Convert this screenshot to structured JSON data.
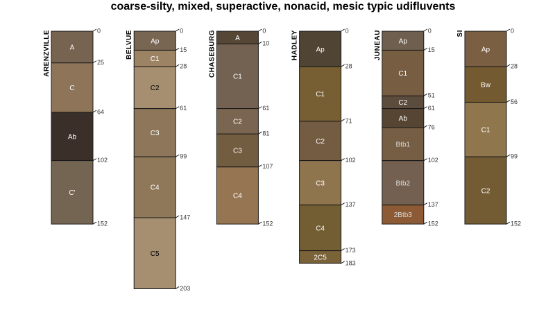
{
  "chart_data": {
    "type": "soil-profile-sketch",
    "title": "coarse-silty, mixed, superactive, nonacid, mesic typic udifluvents",
    "depth_units": "cm",
    "max_depth": 203,
    "profiles": [
      {
        "name": "ARENZVILLE",
        "horizons": [
          {
            "label": "A",
            "top": 0,
            "bottom": 25,
            "color": "#766350",
            "label_color": "#ffffff"
          },
          {
            "label": "C",
            "top": 25,
            "bottom": 64,
            "color": "#8e7559",
            "label_color": "#ffffff"
          },
          {
            "label": "Ab",
            "top": 64,
            "bottom": 102,
            "color": "#3b2f29",
            "label_color": "#ffffff"
          },
          {
            "label": "C'",
            "top": 102,
            "bottom": 152,
            "color": "#746553",
            "label_color": "#ffffff"
          }
        ],
        "depths": [
          "0",
          "25",
          "64",
          "102",
          "152"
        ]
      },
      {
        "name": "BELVUE",
        "horizons": [
          {
            "label": "Ap",
            "top": 0,
            "bottom": 15,
            "color": "#786552",
            "label_color": "#ffffff"
          },
          {
            "label": "C1",
            "top": 15,
            "bottom": 28,
            "color": "#9c8363",
            "label_color": "#ffffff"
          },
          {
            "label": "C2",
            "top": 28,
            "bottom": 61,
            "color": "#a68e71",
            "label_color": "#000000"
          },
          {
            "label": "C3",
            "top": 61,
            "bottom": 99,
            "color": "#8d7659",
            "label_color": "#ffffff"
          },
          {
            "label": "C4",
            "top": 99,
            "bottom": 147,
            "color": "#8f785a",
            "label_color": "#ffffff"
          },
          {
            "label": "C5",
            "top": 147,
            "bottom": 203,
            "color": "#a68e71",
            "label_color": "#000000"
          }
        ],
        "depths": [
          "0",
          "15",
          "28",
          "61",
          "99",
          "147",
          "203"
        ]
      },
      {
        "name": "CHASEBURG",
        "horizons": [
          {
            "label": "A",
            "top": 0,
            "bottom": 10,
            "color": "#564636",
            "label_color": "#ffffff"
          },
          {
            "label": "C1",
            "top": 10,
            "bottom": 61,
            "color": "#736252",
            "label_color": "#ffffff"
          },
          {
            "label": "C2",
            "top": 61,
            "bottom": 81,
            "color": "#7a6650",
            "label_color": "#ffffff"
          },
          {
            "label": "C3",
            "top": 81,
            "bottom": 107,
            "color": "#735d41",
            "label_color": "#ffffff"
          },
          {
            "label": "C4",
            "top": 107,
            "bottom": 152,
            "color": "#967552",
            "label_color": "#ffffff"
          }
        ],
        "depths": [
          "0",
          "10",
          "61",
          "81",
          "107",
          "152"
        ]
      },
      {
        "name": "HADLEY",
        "horizons": [
          {
            "label": "Ap",
            "top": 0,
            "bottom": 28,
            "color": "#504434",
            "label_color": "#ffffff"
          },
          {
            "label": "C1",
            "top": 28,
            "bottom": 71,
            "color": "#775e33",
            "label_color": "#ffffff"
          },
          {
            "label": "C2",
            "top": 71,
            "bottom": 102,
            "color": "#735c42",
            "label_color": "#ffffff"
          },
          {
            "label": "C3",
            "top": 102,
            "bottom": 137,
            "color": "#8f754e",
            "label_color": "#ffffff"
          },
          {
            "label": "C4",
            "top": 137,
            "bottom": 173,
            "color": "#735d33",
            "label_color": "#ffffff"
          },
          {
            "label": "2C5",
            "top": 173,
            "bottom": 183,
            "color": "#7a6339",
            "label_color": "#ffffff"
          }
        ],
        "depths": [
          "0",
          "28",
          "71",
          "102",
          "137",
          "173",
          "183"
        ]
      },
      {
        "name": "JUNEAU",
        "horizons": [
          {
            "label": "Ap",
            "top": 0,
            "bottom": 15,
            "color": "#6f5f4e",
            "label_color": "#ffffff"
          },
          {
            "label": "C1",
            "top": 15,
            "bottom": 51,
            "color": "#775e42",
            "label_color": "#ffffff"
          },
          {
            "label": "C2",
            "top": 51,
            "bottom": 61,
            "color": "#5c4c3d",
            "label_color": "#ffffff"
          },
          {
            "label": "Ab",
            "top": 61,
            "bottom": 76,
            "color": "#574534",
            "label_color": "#ffffff"
          },
          {
            "label": "Btb1",
            "top": 76,
            "bottom": 102,
            "color": "#765e44",
            "label_color": "#d9d9d9"
          },
          {
            "label": "Btb2",
            "top": 102,
            "bottom": 137,
            "color": "#736050",
            "label_color": "#d9d9d9"
          },
          {
            "label": "2Btb3",
            "top": 137,
            "bottom": 152,
            "color": "#8c5b36",
            "label_color": "#d9d9d9"
          }
        ],
        "depths": [
          "0",
          "15",
          "51",
          "61",
          "76",
          "102",
          "137",
          "152"
        ]
      },
      {
        "name": "SI",
        "horizons": [
          {
            "label": "Ap",
            "top": 0,
            "bottom": 28,
            "color": "#7b5f42",
            "label_color": "#ffffff"
          },
          {
            "label": "Bw",
            "top": 28,
            "bottom": 56,
            "color": "#745a30",
            "label_color": "#ffffff"
          },
          {
            "label": "C1",
            "top": 56,
            "bottom": 99,
            "color": "#8f764c",
            "label_color": "#ffffff"
          },
          {
            "label": "C2",
            "top": 99,
            "bottom": 152,
            "color": "#735c33",
            "label_color": "#ffffff"
          }
        ],
        "depths": [
          "0",
          "28",
          "56",
          "99",
          "152"
        ]
      }
    ]
  }
}
